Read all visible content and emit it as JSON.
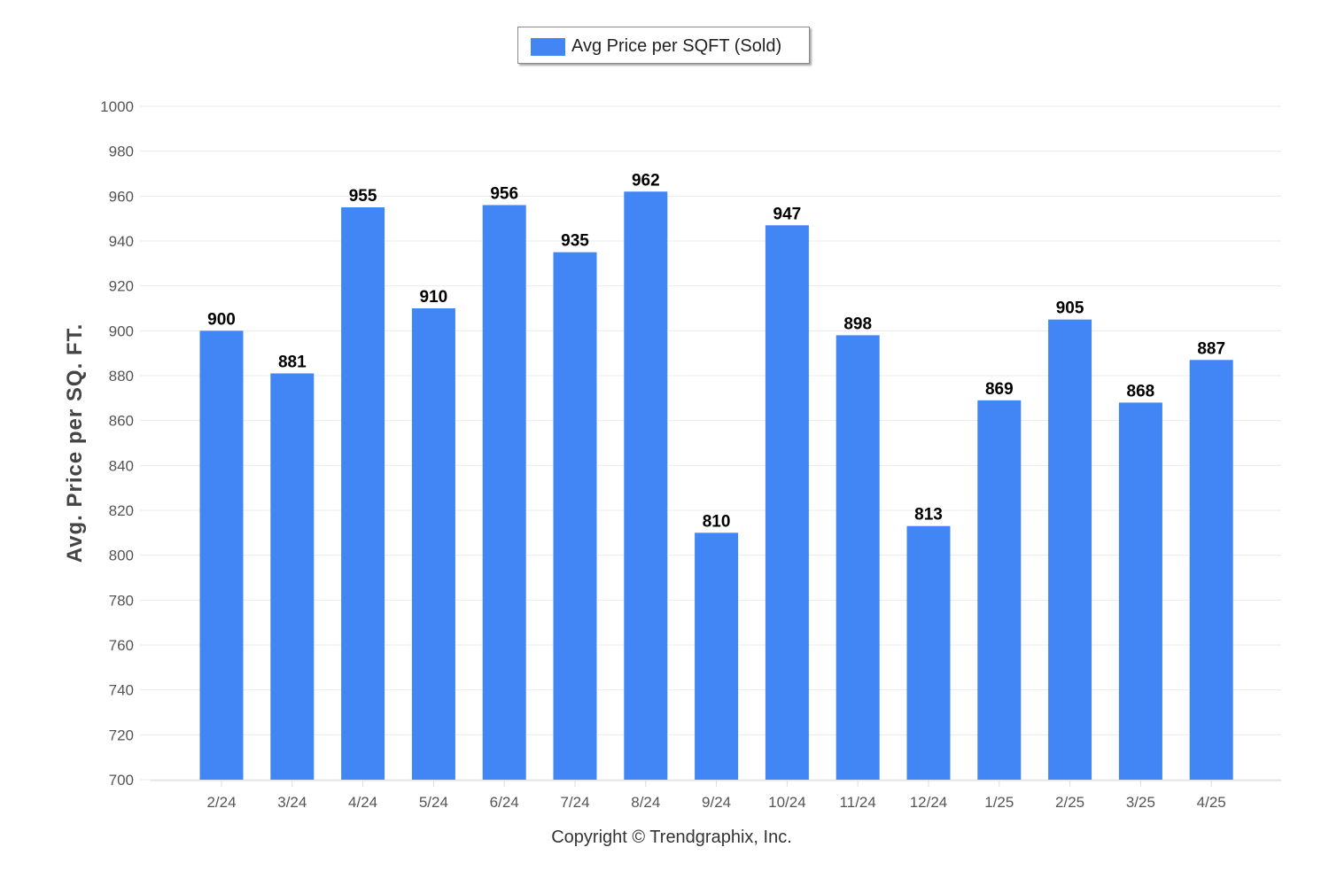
{
  "legend": {
    "label": "Avg Price per SQFT (Sold)"
  },
  "copyright": "Copyright © Trendgraphix, Inc.",
  "colors": {
    "bar": "#4285f4",
    "grid": "#ebebeb",
    "axis_text": "#555555",
    "value_text": "#000000",
    "ylabel": "#444444"
  },
  "chart_data": {
    "type": "bar",
    "categories": [
      "2/24",
      "3/24",
      "4/24",
      "5/24",
      "6/24",
      "7/24",
      "8/24",
      "9/24",
      "10/24",
      "11/24",
      "12/24",
      "1/25",
      "2/25",
      "3/25",
      "4/25"
    ],
    "series": [
      {
        "name": "Avg Price per SQFT (Sold)",
        "values": [
          900,
          881,
          955,
          910,
          956,
          935,
          962,
          810,
          947,
          898,
          813,
          869,
          905,
          868,
          887
        ]
      }
    ],
    "ylabel": "Avg. Price per SQ. FT.",
    "xlabel": "",
    "ylim": [
      700,
      1000
    ],
    "yticks": [
      700,
      720,
      740,
      760,
      780,
      800,
      820,
      840,
      860,
      880,
      900,
      920,
      940,
      960,
      980,
      1000
    ],
    "grid": true,
    "data_labels": true,
    "legend_position": "top-center"
  }
}
